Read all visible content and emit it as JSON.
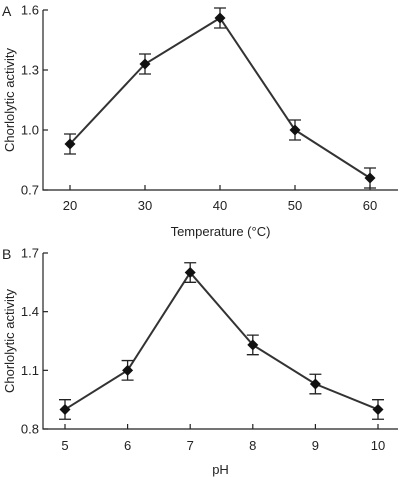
{
  "chart_data": [
    {
      "type": "line",
      "panel_label": "A",
      "xlabel": "Temperature (°C)",
      "ylabel": "Chorlolytic activity",
      "x": [
        20,
        30,
        40,
        50,
        60
      ],
      "xticks": [
        "20",
        "30",
        "40",
        "50",
        "60"
      ],
      "ylim": [
        0.7,
        1.6
      ],
      "yticks": [
        "0.7",
        "1.0",
        "1.3",
        "1.6"
      ],
      "grid": false,
      "series": [
        {
          "values": [
            0.93,
            1.33,
            1.56,
            1.0,
            0.76
          ],
          "errors": [
            0.05,
            0.05,
            0.05,
            0.05,
            0.05
          ]
        }
      ]
    },
    {
      "type": "line",
      "panel_label": "B",
      "xlabel": "pH",
      "ylabel": "Chorlolytic activity",
      "x": [
        5,
        6,
        7,
        8,
        9,
        10
      ],
      "xticks": [
        "5",
        "6",
        "7",
        "8",
        "9",
        "10"
      ],
      "ylim": [
        0.8,
        1.7
      ],
      "yticks": [
        "0.8",
        "1.1",
        "1.4",
        "1.7"
      ],
      "grid": false,
      "series": [
        {
          "values": [
            0.9,
            1.1,
            1.6,
            1.23,
            1.03,
            0.9
          ],
          "errors": [
            0.05,
            0.05,
            0.05,
            0.05,
            0.05,
            0.05
          ]
        }
      ]
    }
  ]
}
